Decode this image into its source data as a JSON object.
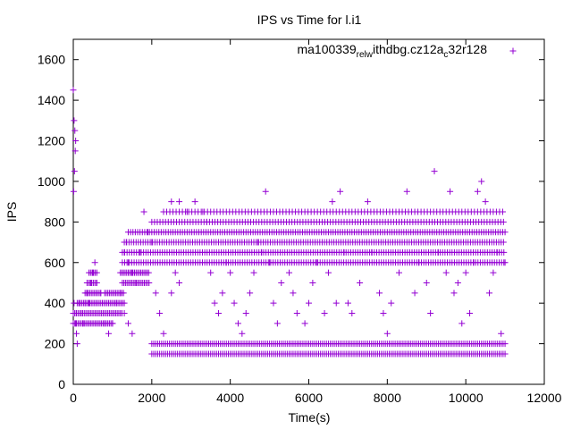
{
  "chart_data": {
    "type": "scatter",
    "title": "IPS vs Time for l.i1",
    "xlabel": "Time(s)",
    "ylabel": "IPS",
    "xlim": [
      0,
      12000
    ],
    "ylim": [
      0,
      1700
    ],
    "xticks": [
      "0",
      "2000",
      "4000",
      "6000",
      "8000",
      "10000",
      "12000"
    ],
    "yticks": [
      "0",
      "200",
      "400",
      "600",
      "800",
      "1000",
      "1200",
      "1400",
      "1600"
    ],
    "grid": false,
    "legend_position": "top-right",
    "marker": "+",
    "series": [
      {
        "name": "ma100339_rel_withdbg.cz12a_c32r128",
        "color": "#9400d3",
        "legend_parts": [
          {
            "text": "ma100339",
            "sub": false
          },
          {
            "text": "rel",
            "sub": true
          },
          {
            "text": "w",
            "sub": true
          },
          {
            "text": "ithdbg.cz12a",
            "sub": false
          },
          {
            "text": "c",
            "sub": true
          },
          {
            "text": "32r128",
            "sub": false
          }
        ],
        "points": [
          [
            0,
            1450
          ],
          [
            20,
            1300
          ],
          [
            40,
            1250
          ],
          [
            60,
            1200
          ],
          [
            50,
            1150
          ],
          [
            30,
            1050
          ],
          [
            10,
            950
          ],
          [
            20,
            400
          ],
          [
            40,
            350
          ],
          [
            60,
            300
          ],
          [
            80,
            250
          ],
          [
            100,
            200
          ],
          [
            150,
            400
          ],
          [
            200,
            350
          ],
          [
            250,
            300
          ],
          [
            300,
            400
          ],
          [
            350,
            450
          ],
          [
            400,
            400
          ],
          [
            450,
            500
          ],
          [
            500,
            550
          ],
          [
            550,
            600
          ],
          [
            600,
            500
          ],
          [
            700,
            450
          ],
          [
            800,
            300
          ],
          [
            900,
            250
          ],
          [
            1000,
            300
          ],
          [
            1100,
            400
          ],
          [
            1200,
            450
          ],
          [
            1300,
            350
          ],
          [
            1400,
            300
          ],
          [
            1500,
            250
          ],
          [
            1300,
            650
          ],
          [
            1350,
            700
          ],
          [
            1400,
            600
          ],
          [
            1500,
            550
          ],
          [
            1600,
            500
          ],
          [
            1700,
            650
          ],
          [
            1800,
            850
          ],
          [
            1900,
            750
          ],
          [
            2000,
            700
          ],
          [
            2100,
            450
          ],
          [
            2200,
            350
          ],
          [
            2300,
            250
          ],
          [
            2500,
            450
          ],
          [
            2600,
            550
          ],
          [
            2700,
            500
          ],
          [
            2300,
            850
          ],
          [
            2500,
            900
          ],
          [
            2700,
            900
          ],
          [
            2900,
            850
          ],
          [
            3100,
            900
          ],
          [
            3300,
            850
          ],
          [
            3400,
            800
          ],
          [
            3500,
            550
          ],
          [
            3600,
            400
          ],
          [
            3700,
            350
          ],
          [
            3800,
            450
          ],
          [
            3900,
            600
          ],
          [
            4000,
            550
          ],
          [
            4100,
            400
          ],
          [
            4200,
            300
          ],
          [
            4300,
            250
          ],
          [
            4400,
            350
          ],
          [
            4500,
            450
          ],
          [
            4600,
            550
          ],
          [
            4700,
            700
          ],
          [
            4800,
            650
          ],
          [
            4900,
            950
          ],
          [
            5000,
            600
          ],
          [
            5100,
            400
          ],
          [
            5200,
            300
          ],
          [
            5300,
            500
          ],
          [
            5500,
            550
          ],
          [
            5600,
            450
          ],
          [
            5700,
            350
          ],
          [
            5900,
            300
          ],
          [
            6000,
            400
          ],
          [
            6100,
            500
          ],
          [
            6200,
            600
          ],
          [
            6400,
            350
          ],
          [
            6500,
            550
          ],
          [
            6600,
            900
          ],
          [
            6700,
            400
          ],
          [
            6800,
            950
          ],
          [
            6900,
            650
          ],
          [
            7000,
            400
          ],
          [
            7100,
            350
          ],
          [
            7300,
            500
          ],
          [
            7500,
            900
          ],
          [
            7600,
            650
          ],
          [
            7800,
            450
          ],
          [
            7900,
            350
          ],
          [
            8000,
            250
          ],
          [
            8100,
            400
          ],
          [
            8300,
            550
          ],
          [
            8500,
            950
          ],
          [
            8700,
            450
          ],
          [
            8800,
            600
          ],
          [
            9000,
            500
          ],
          [
            9100,
            350
          ],
          [
            9200,
            1050
          ],
          [
            9300,
            650
          ],
          [
            9500,
            550
          ],
          [
            9600,
            950
          ],
          [
            9700,
            450
          ],
          [
            9800,
            500
          ],
          [
            9900,
            300
          ],
          [
            10000,
            550
          ],
          [
            10100,
            350
          ],
          [
            10200,
            600
          ],
          [
            10300,
            950
          ],
          [
            10400,
            1000
          ],
          [
            10500,
            900
          ],
          [
            10600,
            450
          ],
          [
            10700,
            550
          ],
          [
            10800,
            650
          ],
          [
            10900,
            250
          ],
          [
            11000,
            600
          ]
        ],
        "bands": [
          {
            "y": 150,
            "x_from": 2000,
            "x_to": 11000,
            "step": 50
          },
          {
            "y": 200,
            "x_from": 2000,
            "x_to": 11000,
            "step": 50
          },
          {
            "y": 600,
            "x_from": 1250,
            "x_to": 11000,
            "step": 60
          },
          {
            "y": 650,
            "x_from": 1250,
            "x_to": 11000,
            "step": 60
          },
          {
            "y": 700,
            "x_from": 1300,
            "x_to": 11000,
            "step": 60
          },
          {
            "y": 750,
            "x_from": 1400,
            "x_to": 11000,
            "step": 60
          },
          {
            "y": 800,
            "x_from": 2000,
            "x_to": 11000,
            "step": 70
          },
          {
            "y": 850,
            "x_from": 2300,
            "x_to": 11000,
            "step": 80
          },
          {
            "y": 550,
            "x_from": 1200,
            "x_to": 1950,
            "step": 40
          },
          {
            "y": 500,
            "x_from": 1250,
            "x_to": 1950,
            "step": 40
          },
          {
            "y": 450,
            "x_from": 800,
            "x_to": 1300,
            "step": 40
          },
          {
            "y": 400,
            "x_from": 100,
            "x_to": 1300,
            "step": 40
          },
          {
            "y": 350,
            "x_from": 0,
            "x_to": 1250,
            "step": 40
          },
          {
            "y": 300,
            "x_from": 0,
            "x_to": 1000,
            "step": 40
          },
          {
            "y": 450,
            "x_from": 300,
            "x_to": 700,
            "step": 40
          },
          {
            "y": 500,
            "x_from": 350,
            "x_to": 600,
            "step": 40
          },
          {
            "y": 550,
            "x_from": 400,
            "x_to": 600,
            "step": 40
          }
        ]
      }
    ]
  }
}
